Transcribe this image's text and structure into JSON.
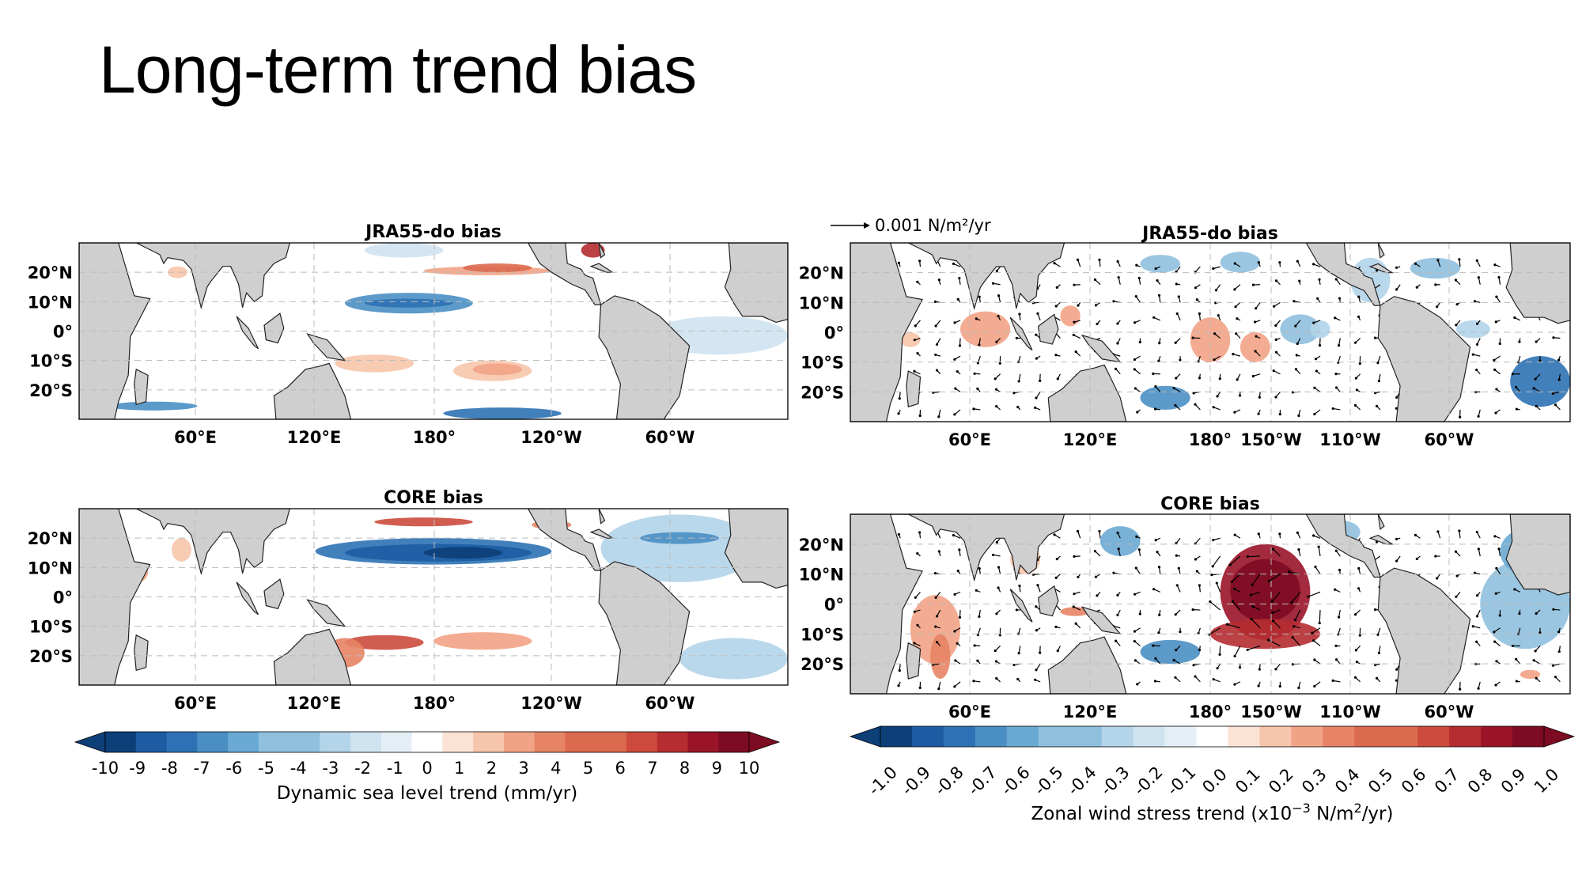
{
  "slide": {
    "title": "Long-term trend bias"
  },
  "chart_data": [
    {
      "type": "heatmap",
      "panel": "ssh-jra",
      "title": "JRA55-do bias",
      "x_ticks": [
        "60°E",
        "120°E",
        "180°",
        "120°W",
        "60°W"
      ],
      "y_ticks": [
        "20°N",
        "10°N",
        "0°",
        "10°S",
        "20°S"
      ],
      "colorbar": "dsl"
    },
    {
      "type": "heatmap",
      "panel": "ssh-core",
      "title": "CORE bias",
      "x_ticks": [
        "60°E",
        "120°E",
        "180°",
        "120°W",
        "60°W"
      ],
      "y_ticks": [
        "20°N",
        "10°N",
        "0°",
        "10°S",
        "20°S"
      ],
      "colorbar": "dsl"
    },
    {
      "type": "heatmap",
      "panel": "tau-jra",
      "title": "JRA55-do bias",
      "x_ticks": [
        "60°E",
        "120°E",
        "180°",
        "150°W",
        "110°W",
        "60°W"
      ],
      "y_ticks": [
        "20°N",
        "10°N",
        "0°",
        "10°S",
        "20°S"
      ],
      "vector_key": {
        "label": "0.001 N/m²/yr"
      },
      "colorbar": "tau"
    },
    {
      "type": "heatmap",
      "panel": "tau-core",
      "title": "CORE bias",
      "x_ticks": [
        "60°E",
        "120°E",
        "180°",
        "150°W",
        "110°W",
        "60°W"
      ],
      "y_ticks": [
        "20°N",
        "10°N",
        "0°",
        "10°S",
        "20°S"
      ],
      "colorbar": "tau"
    }
  ],
  "colorbars": {
    "dsl": {
      "label": "Dynamic sea level trend (mm/yr)",
      "ticks": [
        "-10",
        "-9",
        "-8",
        "-7",
        "-6",
        "-5",
        "-4",
        "-3",
        "-2",
        "-1",
        "0",
        "1",
        "2",
        "3",
        "4",
        "5",
        "6",
        "7",
        "8",
        "9",
        "10"
      ]
    },
    "tau": {
      "label": "Zonal wind stress trend (x10",
      "label_sup": "−3",
      "label_tail": " N/m",
      "label_sup2": "2",
      "label_end": "/yr)",
      "ticks": [
        "-1.0",
        "-0.9",
        "-0.8",
        "-0.7",
        "-0.6",
        "-0.5",
        "-0.4",
        "-0.3",
        "-0.2",
        "-0.1",
        "0.0",
        "0.1",
        "0.2",
        "0.3",
        "0.4",
        "0.5",
        "0.6",
        "0.7",
        "0.8",
        "0.9",
        "1.0"
      ]
    }
  },
  "colors": {
    "palette": [
      "#0d3f78",
      "#1d5ca3",
      "#2e72b5",
      "#4a8fc4",
      "#6aa9d3",
      "#8fc0de",
      "#b3d4e9",
      "#cfe3f1",
      "#e4eef6",
      "#f6f0ec",
      "#fbe2d5",
      "#f7c5ab",
      "#f2a386",
      "#e78465",
      "#dc6a4f",
      "#cc4b3d",
      "#b52c31",
      "#9a1428",
      "#7d0b22"
    ],
    "land": "#cfcfcf",
    "coast": "#222222",
    "grid": "#bbbbbb"
  }
}
